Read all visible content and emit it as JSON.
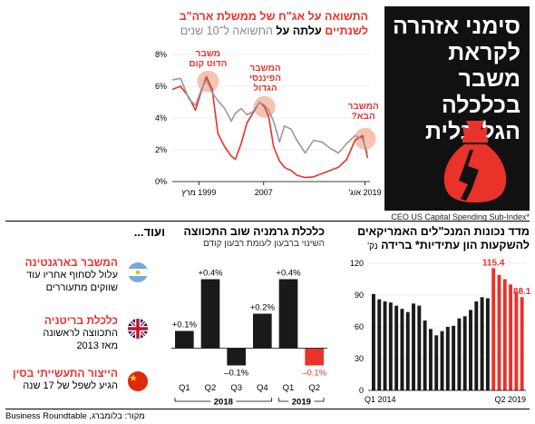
{
  "headline": {
    "text": "סימני אזהרה לקראת משבר בכלכלה הגלובלית",
    "lines": [
      "סימני אזהרה",
      "לקראת משבר",
      "בכלכלה",
      "הגלובלית"
    ]
  },
  "source": "מקור: בלומברג, Business Roundtable",
  "colors": {
    "red": "#e8322a",
    "gray": "#999999",
    "black": "#1a1a1a",
    "headline_bg": "#111111",
    "annotation_circle": "#f4b8a4"
  },
  "icon": "money-bag-icon",
  "chart_data": [
    {
      "type": "line",
      "title_line1": "התשואה על אג\"ח של ממשלת ארה\"ב",
      "title_line2_red": "לשנתיים",
      "title_line2_black": "עלתה על",
      "title_line2_gray": "התשואה ל־10 שנים",
      "x_ticks": [
        "1999 מרץ",
        "2007",
        "2019 אוג'"
      ],
      "y_ticks": [
        "0%",
        "2%",
        "4%",
        "6%",
        "8%"
      ],
      "ylim": [
        0,
        8
      ],
      "series": [
        {
          "name": "לשנתיים",
          "color": "#e8322a",
          "x": [
            1996,
            1997,
            1998,
            1998.8,
            1999.5,
            2000.1,
            2000.8,
            2001.5,
            2002.3,
            2003.1,
            2003.6,
            2004.3,
            2005,
            2005.7,
            2006.5,
            2007.1,
            2007.6,
            2008.2,
            2008.9,
            2009.5,
            2010.3,
            2011,
            2012,
            2013,
            2014,
            2015,
            2016,
            2017,
            2018,
            2018.9,
            2019.5
          ],
          "values": [
            5.8,
            6.0,
            5.3,
            4.5,
            5.7,
            6.6,
            5.8,
            3.0,
            2.2,
            1.6,
            1.4,
            2.4,
            3.7,
            4.3,
            5.0,
            4.7,
            4.1,
            2.2,
            1.3,
            0.9,
            0.7,
            0.4,
            0.25,
            0.3,
            0.5,
            0.7,
            0.9,
            1.4,
            2.6,
            2.9,
            1.5
          ]
        },
        {
          "name": "ל־10 שנים",
          "color": "#999999",
          "x": [
            1996,
            1997,
            1998,
            1998.8,
            1999.5,
            2000.1,
            2000.8,
            2001.5,
            2002.3,
            2003.1,
            2003.6,
            2004.3,
            2005,
            2005.7,
            2006.5,
            2007.1,
            2007.6,
            2008.2,
            2008.9,
            2009.5,
            2010.3,
            2011,
            2012,
            2013,
            2014,
            2015,
            2016,
            2017,
            2018,
            2018.9,
            2019.5
          ],
          "values": [
            6.4,
            6.5,
            5.2,
            4.8,
            5.8,
            6.4,
            5.6,
            5.1,
            4.6,
            3.8,
            4.3,
            4.6,
            4.2,
            4.4,
            5.0,
            4.8,
            4.5,
            3.8,
            2.5,
            3.5,
            3.3,
            2.6,
            1.8,
            2.6,
            2.5,
            2.1,
            1.8,
            2.4,
            2.9,
            2.7,
            1.8
          ]
        }
      ],
      "annotations": [
        {
          "x": 2000.3,
          "y": 6.3,
          "label_lines": [
            "משבר",
            "הדוט קום"
          ]
        },
        {
          "x": 2007.1,
          "y": 4.7,
          "label_lines": [
            "המשבר",
            "הפיננסי",
            "הגדול"
          ]
        },
        {
          "x": 2019.2,
          "y": 2.7,
          "label_lines": [
            "המשבר",
            "הבא?"
          ]
        }
      ]
    },
    {
      "type": "bar",
      "title": "מדד נכונות המנכ\"לים האמריקאים להשקעות הון עתידיות* ברידה",
      "title_unit": "נק'",
      "footnote": "CEO US Capital Spending Sub-Index*",
      "x_ticks": [
        "Q1 2014",
        "Q2 2019"
      ],
      "y_ticks": [
        "0",
        "30",
        "60",
        "90",
        "120"
      ],
      "ylim": [
        0,
        120
      ],
      "values": [
        91,
        86,
        84,
        83,
        80,
        77,
        74,
        82,
        80,
        66,
        58,
        52,
        56,
        60,
        61,
        68,
        70,
        76,
        84,
        88,
        87,
        115.4,
        109,
        105,
        100,
        93,
        88.1
      ],
      "red_from_index": 21,
      "labeled": [
        {
          "index": 21,
          "text": "115.4"
        },
        {
          "index": 26,
          "text": "88.1"
        }
      ]
    },
    {
      "type": "bar",
      "title": "כלכלת גרמניה שוב התכווצה",
      "subtitle": "השינוי ברבעון לעומת רבעון קודם",
      "categories": [
        "Q1",
        "Q2",
        "Q3",
        "Q4",
        "Q1",
        "Q2"
      ],
      "years": [
        {
          "label": "2018",
          "from": 0,
          "to": 3
        },
        {
          "label": "2019",
          "from": 4,
          "to": 5
        }
      ],
      "values": [
        0.1,
        0.4,
        -0.1,
        0.2,
        0.4,
        -0.1
      ],
      "value_labels": [
        "+0.1%",
        "+0.4%",
        "–0.1%",
        "+0.2%",
        "+0.4%",
        "–0.1%"
      ],
      "ylim": [
        -0.15,
        0.45
      ],
      "bar_colors": [
        "#1a1a1a",
        "#1a1a1a",
        "#1a1a1a",
        "#1a1a1a",
        "#1a1a1a",
        "#e8322a"
      ]
    }
  ],
  "more": {
    "title": "ועוד...",
    "items": [
      {
        "title": "המשבר בארגנטינה",
        "lines": [
          "עלול לסחוף אחריו עוד",
          "שווקים מתעוררים"
        ],
        "flag": "argentina-flag-icon"
      },
      {
        "title": "כלכלת בריטניה",
        "lines": [
          "התכווצה לראשונה",
          "מאז 2013"
        ],
        "flag": "uk-flag-icon"
      },
      {
        "title": "הייצור התעשייתי בסין",
        "lines": [
          "הגיע לשפל של 17 שנה"
        ],
        "flag": "china-flag-icon"
      }
    ]
  }
}
